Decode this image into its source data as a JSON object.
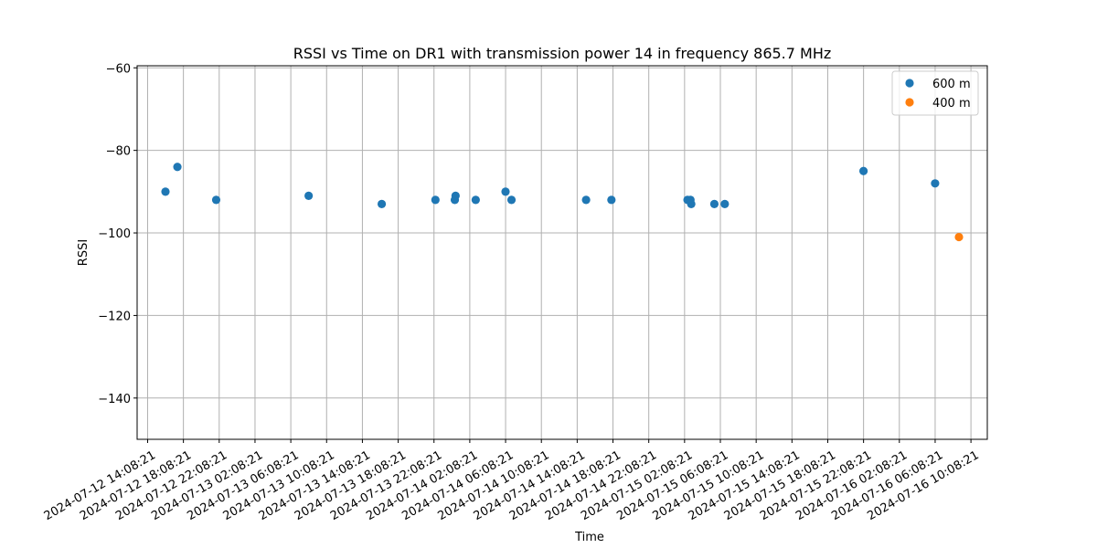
{
  "chart_data": {
    "type": "scatter",
    "title": "RSSI vs Time on DR1 with transmission power 14 in frequency 865.7 MHz",
    "xlabel": "Time",
    "ylabel": "RSSI",
    "x_axis_type": "datetime",
    "xlim": [
      "2024-07-12 12:58:00",
      "2024-07-16 11:58:00"
    ],
    "ylim": [
      -150,
      -59.5
    ],
    "x_ticks": [
      "2024-07-12 14:08:21",
      "2024-07-12 18:08:21",
      "2024-07-12 22:08:21",
      "2024-07-13 02:08:21",
      "2024-07-13 06:08:21",
      "2024-07-13 10:08:21",
      "2024-07-13 14:08:21",
      "2024-07-13 18:08:21",
      "2024-07-13 22:08:21",
      "2024-07-14 02:08:21",
      "2024-07-14 06:08:21",
      "2024-07-14 10:08:21",
      "2024-07-14 14:08:21",
      "2024-07-14 18:08:21",
      "2024-07-14 22:08:21",
      "2024-07-15 02:08:21",
      "2024-07-15 06:08:21",
      "2024-07-15 10:08:21",
      "2024-07-15 14:08:21",
      "2024-07-15 18:08:21",
      "2024-07-15 22:08:21",
      "2024-07-16 02:08:21",
      "2024-07-16 06:08:21",
      "2024-07-16 10:08:21"
    ],
    "y_ticks": [
      -140,
      -120,
      -100,
      -80,
      -60
    ],
    "y_tick_labels": [
      "−140",
      "−120",
      "−100",
      "−80",
      "−60"
    ],
    "grid": true,
    "legend_position": "top-right",
    "series": [
      {
        "name": "600 m",
        "color": "#1f77b4",
        "points": [
          {
            "x": "2024-07-12 16:08",
            "y": -90
          },
          {
            "x": "2024-07-12 17:28",
            "y": -84
          },
          {
            "x": "2024-07-12 21:48",
            "y": -92
          },
          {
            "x": "2024-07-13 08:08",
            "y": -91
          },
          {
            "x": "2024-07-13 16:18",
            "y": -93
          },
          {
            "x": "2024-07-13 22:18",
            "y": -92
          },
          {
            "x": "2024-07-14 00:28",
            "y": -92
          },
          {
            "x": "2024-07-14 00:33",
            "y": -91
          },
          {
            "x": "2024-07-14 02:48",
            "y": -92
          },
          {
            "x": "2024-07-14 06:08",
            "y": -90
          },
          {
            "x": "2024-07-14 06:48",
            "y": -92
          },
          {
            "x": "2024-07-14 15:08",
            "y": -92
          },
          {
            "x": "2024-07-14 17:58",
            "y": -92
          },
          {
            "x": "2024-07-15 02:28",
            "y": -92
          },
          {
            "x": "2024-07-15 02:48",
            "y": -92
          },
          {
            "x": "2024-07-15 02:53",
            "y": -93
          },
          {
            "x": "2024-07-15 05:28",
            "y": -93
          },
          {
            "x": "2024-07-15 06:38",
            "y": -93
          },
          {
            "x": "2024-07-15 22:08",
            "y": -85
          },
          {
            "x": "2024-07-16 06:08",
            "y": -88
          }
        ]
      },
      {
        "name": "400 m",
        "color": "#ff7f0e",
        "points": [
          {
            "x": "2024-07-16 08:48",
            "y": -101
          }
        ]
      }
    ]
  }
}
